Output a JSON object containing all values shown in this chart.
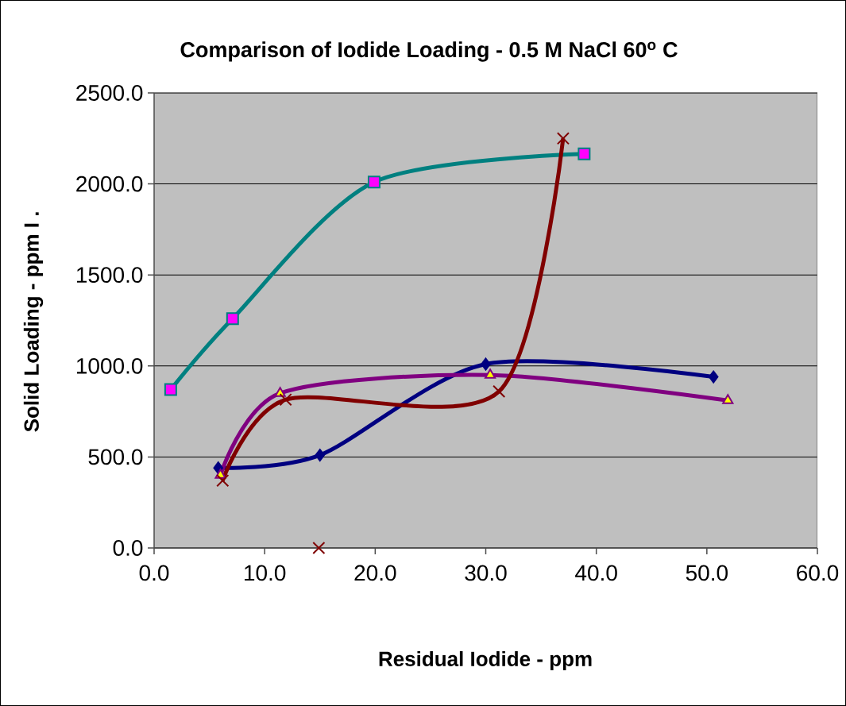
{
  "chart_data": {
    "type": "line",
    "title": "Comparison of Iodide Loading -  0.5 M NaCl 60$^{o}$ C",
    "xlabel": "Residual  Iodide - ppm",
    "ylabel": "Solid Loading - ppm I  .",
    "xlim": [
      0,
      60
    ],
    "ylim": [
      0,
      2500
    ],
    "xticks": [
      {
        "value": 0,
        "label": "0.0"
      },
      {
        "value": 10,
        "label": "10.0"
      },
      {
        "value": 20,
        "label": "20.0"
      },
      {
        "value": 30,
        "label": "30.0"
      },
      {
        "value": 40,
        "label": "40.0"
      },
      {
        "value": 50,
        "label": "50.0"
      },
      {
        "value": 60,
        "label": "60.0"
      }
    ],
    "yticks": [
      {
        "value": 0,
        "label": "0.0"
      },
      {
        "value": 500,
        "label": "500.0"
      },
      {
        "value": 1000,
        "label": "1000.0"
      },
      {
        "value": 1500,
        "label": "1500.0"
      },
      {
        "value": 2000,
        "label": "2000.0"
      },
      {
        "value": 2500,
        "label": "2500.0"
      }
    ],
    "grid": "y",
    "series": [
      {
        "color": "#000080",
        "marker": "diamond",
        "x": [
          5.8,
          15,
          30,
          50.6
        ],
        "values": [
          440,
          510,
          1010,
          940
        ]
      },
      {
        "color": "#008080",
        "marker": "square",
        "x": [
          1.5,
          7.1,
          19.9,
          38.9
        ],
        "values": [
          870,
          1260,
          2010,
          2165
        ]
      },
      {
        "color": "#800080",
        "marker": "triangle",
        "x": [
          6.0,
          11.4,
          30.4,
          51.9
        ],
        "values": [
          400,
          850,
          950,
          810
        ]
      },
      {
        "color": "#800000",
        "marker": "cross",
        "x": [
          6.2,
          11.9,
          31.2,
          37.0
        ],
        "values": [
          370,
          815,
          860,
          2250
        ]
      },
      {
        "type": "scatter",
        "color": "#800000",
        "marker": "cross",
        "x": [
          14.9
        ],
        "values": [
          0
        ]
      }
    ]
  }
}
